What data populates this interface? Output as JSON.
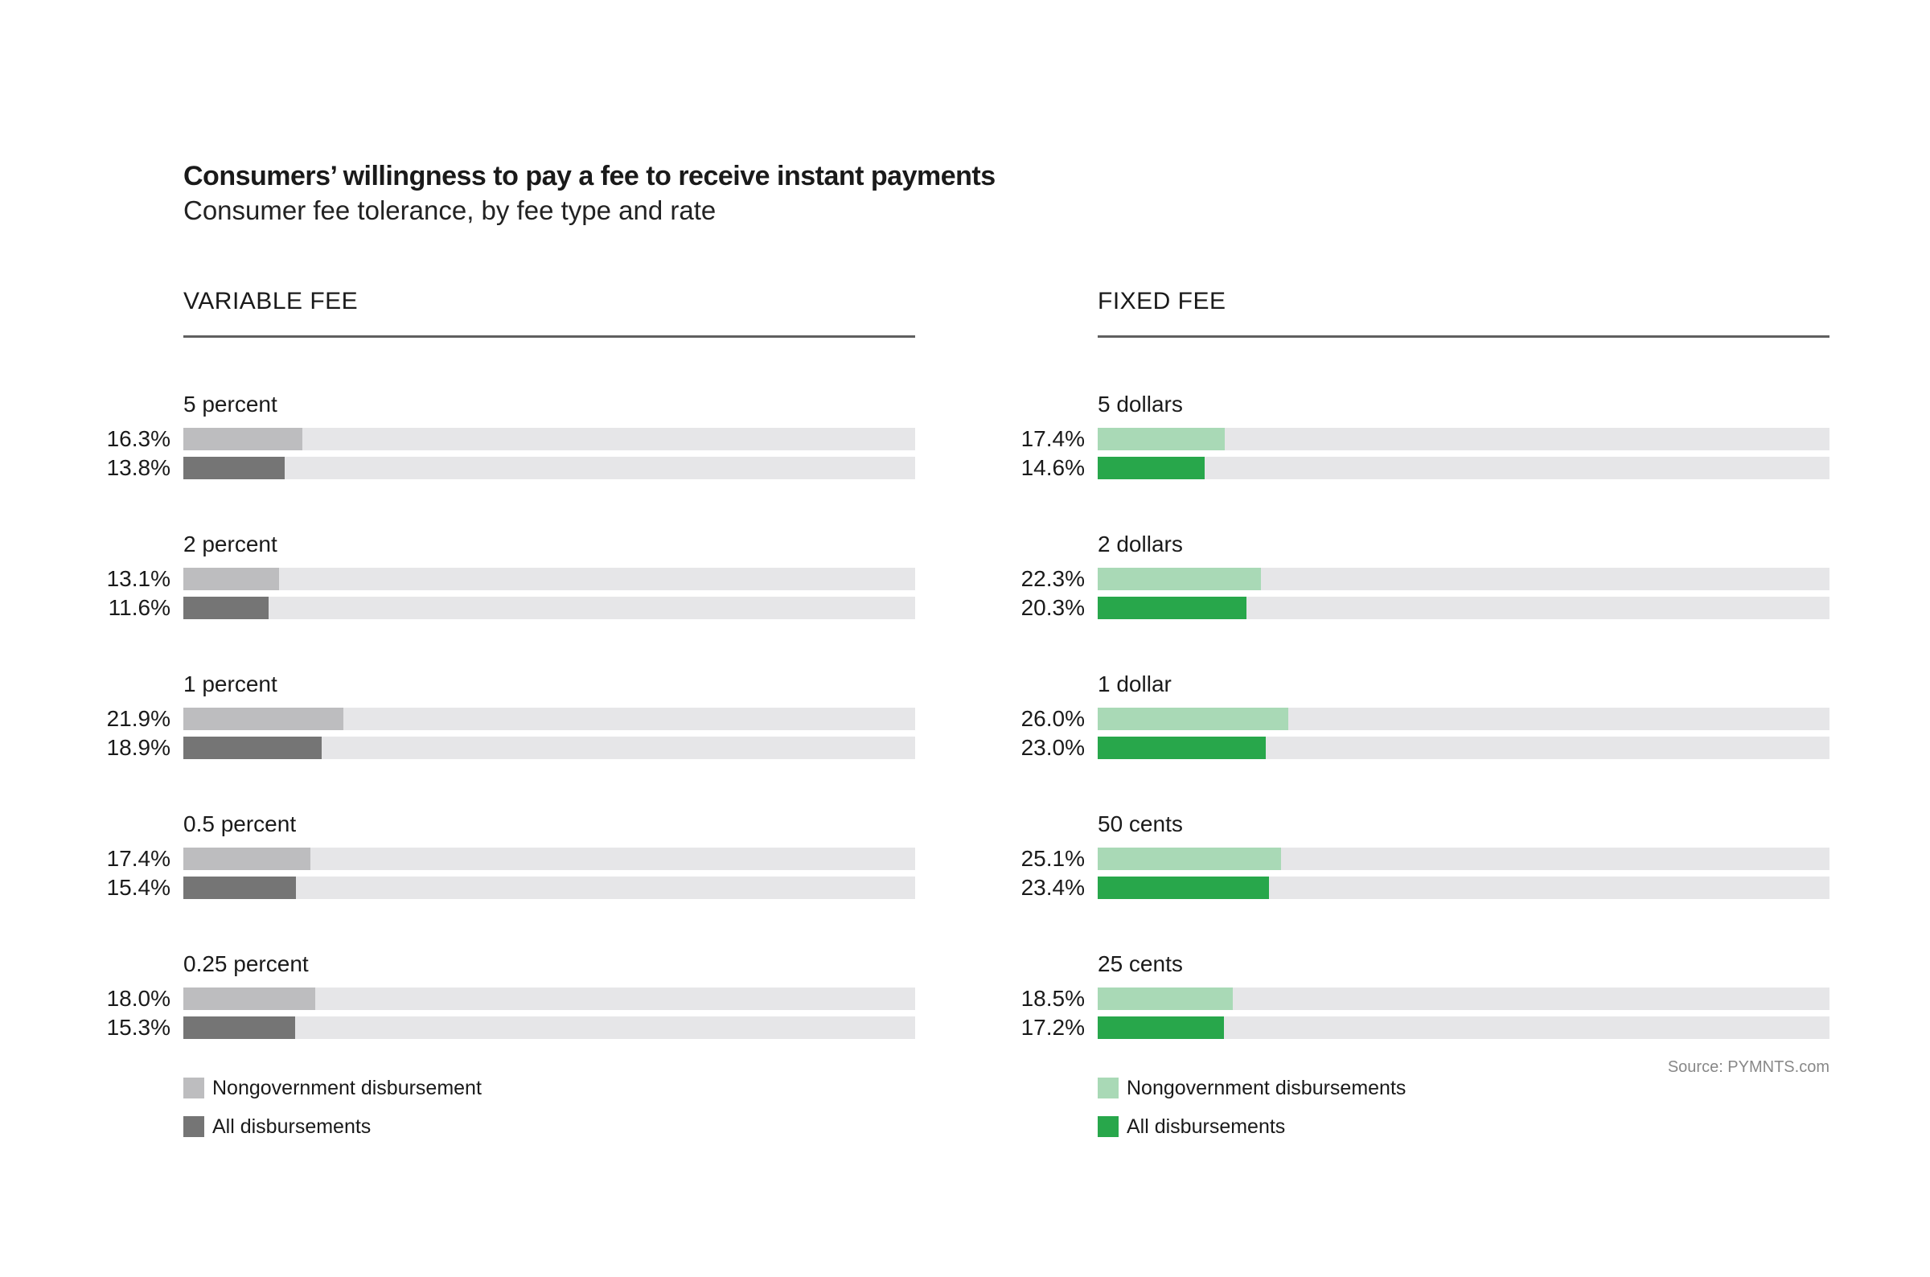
{
  "chart_data": [
    {
      "type": "bar",
      "title": "Consumers’ willingness to pay a fee to receive instant payments",
      "subtitle": "Consumer fee tolerance, by fee type and rate",
      "panel_title": "VARIABLE FEE",
      "categories": [
        "5 percent",
        "2 percent",
        "1 percent",
        "0.5 percent",
        "0.25 percent"
      ],
      "series": [
        {
          "name": "Nongovernment disbursement",
          "color": "#bdbdbf",
          "values": [
            16.3,
            13.1,
            21.9,
            17.4,
            18.0
          ],
          "labels": [
            "16.3%",
            "13.1%",
            "21.9%",
            "17.4%",
            "18.0%"
          ]
        },
        {
          "name": "All disbursements",
          "color": "#757575",
          "values": [
            13.8,
            11.6,
            18.9,
            15.4,
            15.3
          ],
          "labels": [
            "13.8%",
            "11.6%",
            "18.9%",
            "15.4%",
            "15.3%"
          ]
        }
      ],
      "xlim": [
        0,
        100
      ],
      "orientation": "horizontal"
    },
    {
      "type": "bar",
      "panel_title": "FIXED FEE",
      "categories": [
        "5 dollars",
        "2 dollars",
        "1 dollar",
        "50 cents",
        "25 cents"
      ],
      "series": [
        {
          "name": "Nongovernment disbursements",
          "color": "#a9d9b6",
          "values": [
            17.4,
            22.3,
            26.0,
            25.1,
            18.5
          ],
          "labels": [
            "17.4%",
            "22.3%",
            "26.0%",
            "25.1%",
            "18.5%"
          ]
        },
        {
          "name": "All disbursements",
          "color": "#28a74b",
          "values": [
            14.6,
            20.3,
            23.0,
            23.4,
            17.2
          ],
          "labels": [
            "14.6%",
            "20.3%",
            "23.0%",
            "23.4%",
            "17.2%"
          ]
        }
      ],
      "xlim": [
        0,
        100
      ],
      "orientation": "horizontal"
    }
  ],
  "source": "Source: PYMNTS.com",
  "track_color": "#e6e6e8"
}
